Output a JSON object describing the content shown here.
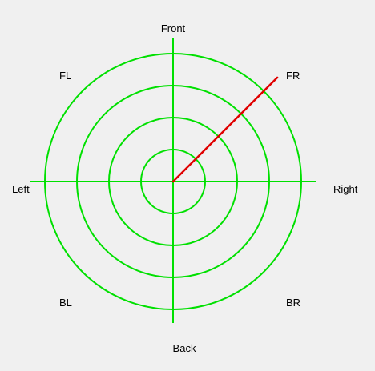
{
  "labels": {
    "front": "Front",
    "back": "Back",
    "left": "Left",
    "right": "Right",
    "fl": "FL",
    "fr": "FR",
    "bl": "BL",
    "br": "BR"
  },
  "radar": {
    "ring_count": 4,
    "heading_deg": 45,
    "magnitude_fraction": 0.92,
    "colors": {
      "grid": "#00e000",
      "indicator": "#e00000",
      "background": "#f0f0f0"
    }
  }
}
